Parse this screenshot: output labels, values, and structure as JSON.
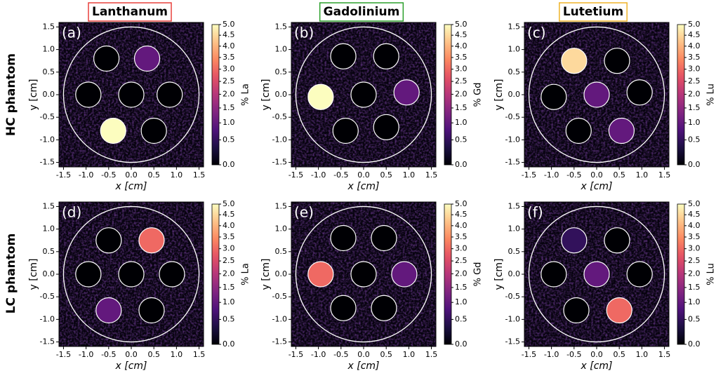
{
  "columns": [
    {
      "title": "Lanthanum",
      "color": "#e8413c"
    },
    {
      "title": "Gadolinium",
      "color": "#2ca02c"
    },
    {
      "title": "Lutetium",
      "color": "#f0b428"
    }
  ],
  "rows": [
    "HC phantom",
    "LC phantom"
  ],
  "chart_data": [
    {
      "type": "heatmap",
      "label": "(a)",
      "xlabel": "x [cm]",
      "ylabel": "y [cm]",
      "colorbar_label": "% La",
      "colormap": "magma",
      "colorbar_gamma": 0.75,
      "clim": [
        0,
        5
      ],
      "cticks": [
        {
          "value": 0,
          "label": "0.0"
        },
        0.5,
        {
          "value": 1,
          "label": "1.0"
        },
        1.5,
        {
          "value": 2,
          "label": "2.0"
        },
        2.5,
        {
          "value": 3,
          "label": "3.0"
        },
        3.5,
        {
          "value": 4,
          "label": "4.0"
        },
        4.5,
        {
          "value": 5,
          "label": "5.0"
        }
      ],
      "xlim": [
        -1.6,
        1.6
      ],
      "ylim": [
        -1.6,
        1.6
      ],
      "xticks": [
        -1.5,
        {
          "value": -1,
          "label": "-1.0"
        },
        -0.5,
        {
          "value": 0,
          "label": "0.0"
        },
        0.5,
        {
          "value": 1,
          "label": "1.0"
        },
        1.5
      ],
      "yticks": [
        -1.5,
        {
          "value": -1,
          "label": "-1.0"
        },
        -0.5,
        {
          "value": 0,
          "label": "0.0"
        },
        0.5,
        {
          "value": 1,
          "label": "1.0"
        },
        1.5
      ],
      "phantom_radius": 1.5,
      "vial_radius": 0.28,
      "vials": {
        "x": [
          -0.55,
          0.35,
          -0.95,
          0,
          0.85,
          -0.4,
          0.5
        ],
        "y": [
          0.8,
          0.8,
          0,
          0,
          0,
          -0.8,
          -0.8
        ],
        "values": [
          0,
          1.0,
          0,
          0,
          0,
          5.0,
          0
        ]
      }
    },
    {
      "type": "heatmap",
      "label": "(b)",
      "xlabel": "x [cm]",
      "ylabel": "y [cm]",
      "colorbar_label": "% Gd",
      "colormap": "magma",
      "colorbar_gamma": 0.75,
      "clim": [
        0,
        5
      ],
      "cticks": [
        {
          "value": 0,
          "label": "0.0"
        },
        0.5,
        {
          "value": 1,
          "label": "1.0"
        },
        1.5,
        {
          "value": 2,
          "label": "2.0"
        },
        2.5,
        {
          "value": 3,
          "label": "3.0"
        },
        3.5,
        {
          "value": 4,
          "label": "4.0"
        },
        4.5,
        {
          "value": 5,
          "label": "5.0"
        }
      ],
      "xlim": [
        -1.6,
        1.6
      ],
      "ylim": [
        -1.6,
        1.6
      ],
      "xticks": [
        -1.5,
        {
          "value": -1,
          "label": "-1.0"
        },
        -0.5,
        {
          "value": 0,
          "label": "0.0"
        },
        0.5,
        {
          "value": 1,
          "label": "1.0"
        },
        1.5
      ],
      "yticks": [
        -1.5,
        {
          "value": -1,
          "label": "-1.0"
        },
        -0.5,
        {
          "value": 0,
          "label": "0.0"
        },
        0.5,
        {
          "value": 1,
          "label": "1.0"
        },
        1.5
      ],
      "phantom_radius": 1.5,
      "vial_radius": 0.28,
      "vials": {
        "x": [
          -0.45,
          0.5,
          -0.95,
          0,
          0.95,
          -0.4,
          0.5
        ],
        "y": [
          0.85,
          0.85,
          -0.05,
          0,
          0.05,
          -0.8,
          -0.72
        ],
        "values": [
          0,
          0,
          5.0,
          0,
          1.0,
          0,
          0
        ]
      }
    },
    {
      "type": "heatmap",
      "label": "(c)",
      "xlabel": "x [cm]",
      "ylabel": "y [cm]",
      "colorbar_label": "% Lu",
      "colormap": "magma",
      "colorbar_gamma": 0.75,
      "clim": [
        0,
        5
      ],
      "cticks": [
        {
          "value": 0,
          "label": "0.0"
        },
        0.5,
        {
          "value": 1,
          "label": "1.0"
        },
        1.5,
        {
          "value": 2,
          "label": "2.0"
        },
        2.5,
        {
          "value": 3,
          "label": "3.0"
        },
        3.5,
        {
          "value": 4,
          "label": "4.0"
        },
        4.5,
        {
          "value": 5,
          "label": "5.0"
        }
      ],
      "xlim": [
        -1.6,
        1.6
      ],
      "ylim": [
        -1.6,
        1.6
      ],
      "xticks": [
        -1.5,
        {
          "value": -1,
          "label": "-1.0"
        },
        -0.5,
        {
          "value": 0,
          "label": "0.0"
        },
        0.5,
        {
          "value": 1,
          "label": "1.0"
        },
        1.5
      ],
      "yticks": [
        -1.5,
        {
          "value": -1,
          "label": "-1.0"
        },
        -0.5,
        {
          "value": 0,
          "label": "0.0"
        },
        0.5,
        {
          "value": 1,
          "label": "1.0"
        },
        1.5
      ],
      "phantom_radius": 1.5,
      "vial_radius": 0.28,
      "vials": {
        "x": [
          -0.5,
          0.45,
          -0.95,
          0,
          0.95,
          -0.4,
          0.55
        ],
        "y": [
          0.75,
          0.75,
          -0.05,
          0,
          0.05,
          -0.8,
          -0.8
        ],
        "values": [
          4.5,
          0,
          0,
          1.0,
          0,
          0,
          1.0
        ]
      }
    },
    {
      "type": "heatmap",
      "label": "(d)",
      "xlabel": "x [cm]",
      "ylabel": "y [cm]",
      "colorbar_label": "% La",
      "colormap": "magma",
      "colorbar_gamma": 0.75,
      "clim": [
        0,
        5
      ],
      "cticks": [
        {
          "value": 0,
          "label": "0.0"
        },
        0.5,
        {
          "value": 1,
          "label": "1.0"
        },
        1.5,
        {
          "value": 2,
          "label": "2.0"
        },
        2.5,
        {
          "value": 3,
          "label": "3.0"
        },
        3.5,
        {
          "value": 4,
          "label": "4.0"
        },
        4.5,
        {
          "value": 5,
          "label": "5.0"
        }
      ],
      "xlim": [
        -1.6,
        1.6
      ],
      "ylim": [
        -1.6,
        1.6
      ],
      "xticks": [
        -1.5,
        {
          "value": -1,
          "label": "-1.0"
        },
        -0.5,
        {
          "value": 0,
          "label": "0.0"
        },
        0.5,
        {
          "value": 1,
          "label": "1.0"
        },
        1.5
      ],
      "yticks": [
        -1.5,
        {
          "value": -1,
          "label": "-1.0"
        },
        -0.5,
        {
          "value": 0,
          "label": "0.0"
        },
        0.5,
        {
          "value": 1,
          "label": "1.0"
        },
        1.5
      ],
      "phantom_radius": 1.5,
      "vial_radius": 0.28,
      "vials": {
        "x": [
          -0.5,
          0.45,
          -0.95,
          0,
          0.9,
          -0.5,
          0.45
        ],
        "y": [
          0.75,
          0.75,
          0,
          0,
          0,
          -0.8,
          -0.8
        ],
        "values": [
          0,
          3.0,
          0,
          0,
          0,
          1.0,
          0
        ]
      }
    },
    {
      "type": "heatmap",
      "label": "(e)",
      "xlabel": "x [cm]",
      "ylabel": "y [cm]",
      "colorbar_label": "% Gd",
      "colormap": "magma",
      "colorbar_gamma": 0.75,
      "clim": [
        0,
        5
      ],
      "cticks": [
        {
          "value": 0,
          "label": "0.0"
        },
        0.5,
        {
          "value": 1,
          "label": "1.0"
        },
        1.5,
        {
          "value": 2,
          "label": "2.0"
        },
        2.5,
        {
          "value": 3,
          "label": "3.0"
        },
        3.5,
        {
          "value": 4,
          "label": "4.0"
        },
        4.5,
        {
          "value": 5,
          "label": "5.0"
        }
      ],
      "xlim": [
        -1.6,
        1.6
      ],
      "ylim": [
        -1.6,
        1.6
      ],
      "xticks": [
        -1.5,
        {
          "value": -1,
          "label": "-1.0"
        },
        -0.5,
        {
          "value": 0,
          "label": "0.0"
        },
        0.5,
        {
          "value": 1,
          "label": "1.0"
        },
        1.5
      ],
      "yticks": [
        -1.5,
        {
          "value": -1,
          "label": "-1.0"
        },
        -0.5,
        {
          "value": 0,
          "label": "0.0"
        },
        0.5,
        {
          "value": 1,
          "label": "1.0"
        },
        1.5
      ],
      "phantom_radius": 1.5,
      "vial_radius": 0.28,
      "vials": {
        "x": [
          -0.45,
          0.45,
          -0.95,
          0,
          0.9,
          -0.45,
          0.45
        ],
        "y": [
          0.8,
          0.8,
          0,
          0,
          0,
          -0.75,
          -0.75
        ],
        "values": [
          0,
          0,
          3.0,
          0,
          1.0,
          0,
          0
        ]
      }
    },
    {
      "type": "heatmap",
      "label": "(f)",
      "xlabel": "x [cm]",
      "ylabel": "y [cm]",
      "colorbar_label": "% Lu",
      "colormap": "magma",
      "colorbar_gamma": 0.75,
      "clim": [
        0,
        5
      ],
      "cticks": [
        {
          "value": 0,
          "label": "0.0"
        },
        0.5,
        {
          "value": 1,
          "label": "1.0"
        },
        1.5,
        {
          "value": 2,
          "label": "2.0"
        },
        2.5,
        {
          "value": 3,
          "label": "3.0"
        },
        3.5,
        {
          "value": 4,
          "label": "4.0"
        },
        4.5,
        {
          "value": 5,
          "label": "5.0"
        }
      ],
      "xlim": [
        -1.6,
        1.6
      ],
      "ylim": [
        -1.6,
        1.6
      ],
      "xticks": [
        -1.5,
        {
          "value": -1,
          "label": "-1.0"
        },
        -0.5,
        {
          "value": 0,
          "label": "0.0"
        },
        0.5,
        {
          "value": 1,
          "label": "1.0"
        },
        1.5
      ],
      "yticks": [
        -1.5,
        {
          "value": -1,
          "label": "-1.0"
        },
        -0.5,
        {
          "value": 0,
          "label": "0.0"
        },
        0.5,
        {
          "value": 1,
          "label": "1.0"
        },
        1.5
      ],
      "phantom_radius": 1.5,
      "vial_radius": 0.28,
      "vials": {
        "x": [
          -0.5,
          0.45,
          -0.95,
          0,
          0.95,
          -0.45,
          0.5
        ],
        "y": [
          0.75,
          0.75,
          0,
          0,
          0,
          -0.8,
          -0.8
        ],
        "values": [
          0.5,
          0,
          0,
          1.0,
          0,
          0,
          3.0
        ]
      }
    }
  ]
}
